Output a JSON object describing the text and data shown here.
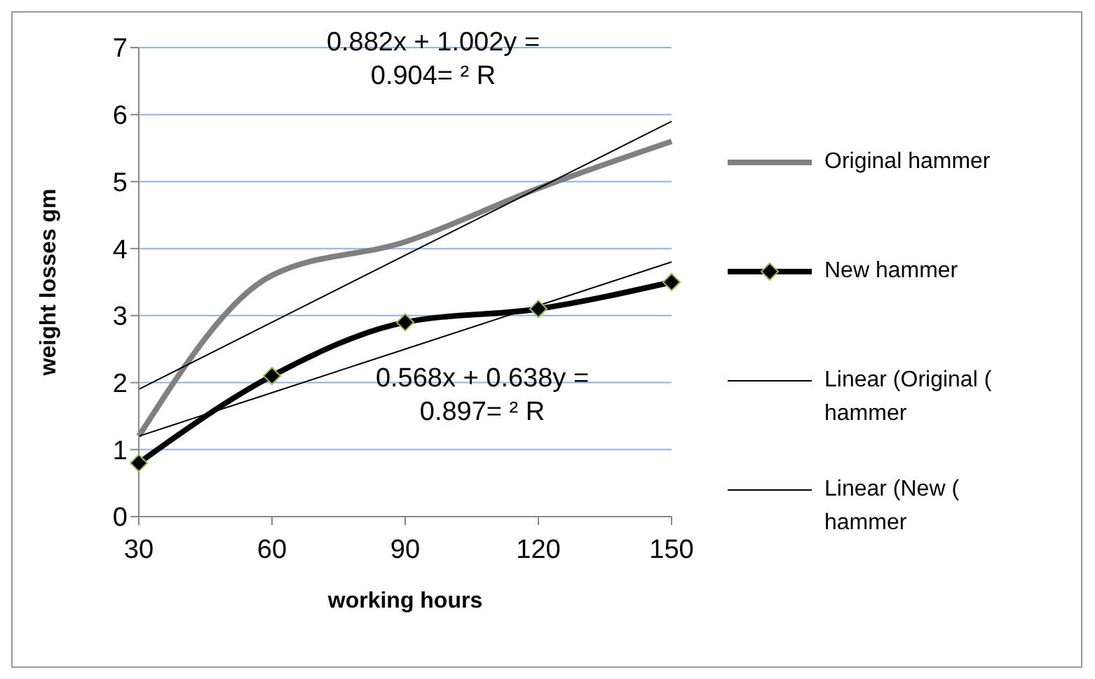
{
  "chart_data": {
    "type": "line",
    "xlabel": "working hours",
    "ylabel": "weight losses gm",
    "categories": [
      "30",
      "60",
      "90",
      "120",
      "150"
    ],
    "ylim": [
      0,
      7
    ],
    "yticks": [
      0,
      1,
      2,
      3,
      4,
      5,
      6,
      7
    ],
    "grid": "y",
    "legend": "right",
    "series": [
      {
        "name": "Original hammer",
        "color": "#808080",
        "values": [
          1.2,
          3.6,
          4.1,
          4.9,
          5.6
        ]
      },
      {
        "name": "New hammer",
        "color": "#000000",
        "marker": "diamond",
        "values": [
          0.8,
          2.1,
          2.9,
          3.1,
          3.5
        ]
      },
      {
        "name": "Linear (Original ( hammer",
        "type": "line",
        "color": "#000000",
        "values": [
          1.9,
          2.9,
          3.9,
          4.9,
          5.9
        ]
      },
      {
        "name": "Linear (New ( hammer",
        "type": "line",
        "color": "#000000",
        "values": [
          1.2,
          1.85,
          2.5,
          3.15,
          3.8
        ]
      }
    ],
    "annotations": [
      "0.882x + 1.002y = 0.904= ² R",
      "0.568x + 0.638y = 0.897= ² R"
    ]
  }
}
